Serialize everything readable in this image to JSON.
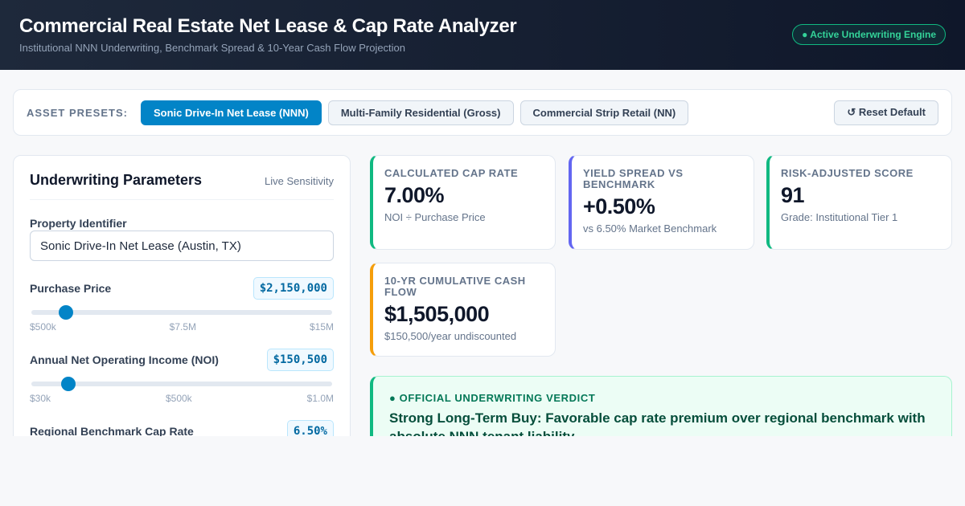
{
  "header": {
    "title": "Commercial Real Estate Net Lease & Cap Rate Analyzer",
    "subtitle": "Institutional NNN Underwriting, Benchmark Spread & 10-Year Cash Flow Projection",
    "badge": "● Active Underwriting Engine"
  },
  "presets": {
    "label": "ASSET PRESETS:",
    "items": [
      {
        "label": "Sonic Drive-In Net Lease (NNN)",
        "active": true
      },
      {
        "label": "Multi-Family Residential (Gross)",
        "active": false
      },
      {
        "label": "Commercial Strip Retail (NN)",
        "active": false
      }
    ],
    "reset_label": "↺ Reset Default"
  },
  "params": {
    "title": "Underwriting Parameters",
    "live_label": "Live Sensitivity",
    "property": {
      "label": "Property Identifier",
      "value": "Sonic Drive-In Net Lease (Austin, TX)"
    },
    "sliders": [
      {
        "label": "Purchase Price",
        "display": "$2,150,000",
        "value": 2150000,
        "min": 500000,
        "max": 15000000,
        "ticks": [
          "$500k",
          "$7.5M",
          "$15M"
        ]
      },
      {
        "label": "Annual Net Operating Income (NOI)",
        "display": "$150,500",
        "value": 150500,
        "min": 30000,
        "max": 1000000,
        "ticks": [
          "$30k",
          "$500k",
          "$1.0M"
        ]
      },
      {
        "label": "Regional Benchmark Cap Rate",
        "display": "6.50%"
      }
    ]
  },
  "kpis": [
    {
      "label": "Calculated Cap Rate",
      "value": "7.00%",
      "note": "NOI ÷ Purchase Price",
      "accent": "#10b981"
    },
    {
      "label": "Yield Spread vs Benchmark",
      "value": "+0.50%",
      "note": "vs 6.50% Market Benchmark",
      "accent": "#6366f1"
    },
    {
      "label": "Risk-Adjusted Score",
      "value": "91",
      "note": "Grade: Institutional Tier 1",
      "accent": "#10b981"
    },
    {
      "label": "10-Yr Cumulative Cash Flow",
      "value": "$1,505,000",
      "note": "$150,500/year undiscounted",
      "accent": "#f59e0b"
    }
  ],
  "verdict": {
    "label": "● OFFICIAL UNDERWRITING VERDICT",
    "text": "Strong Long-Term Buy: Favorable cap rate premium over regional benchmark with absolute NNN tenant liability"
  }
}
